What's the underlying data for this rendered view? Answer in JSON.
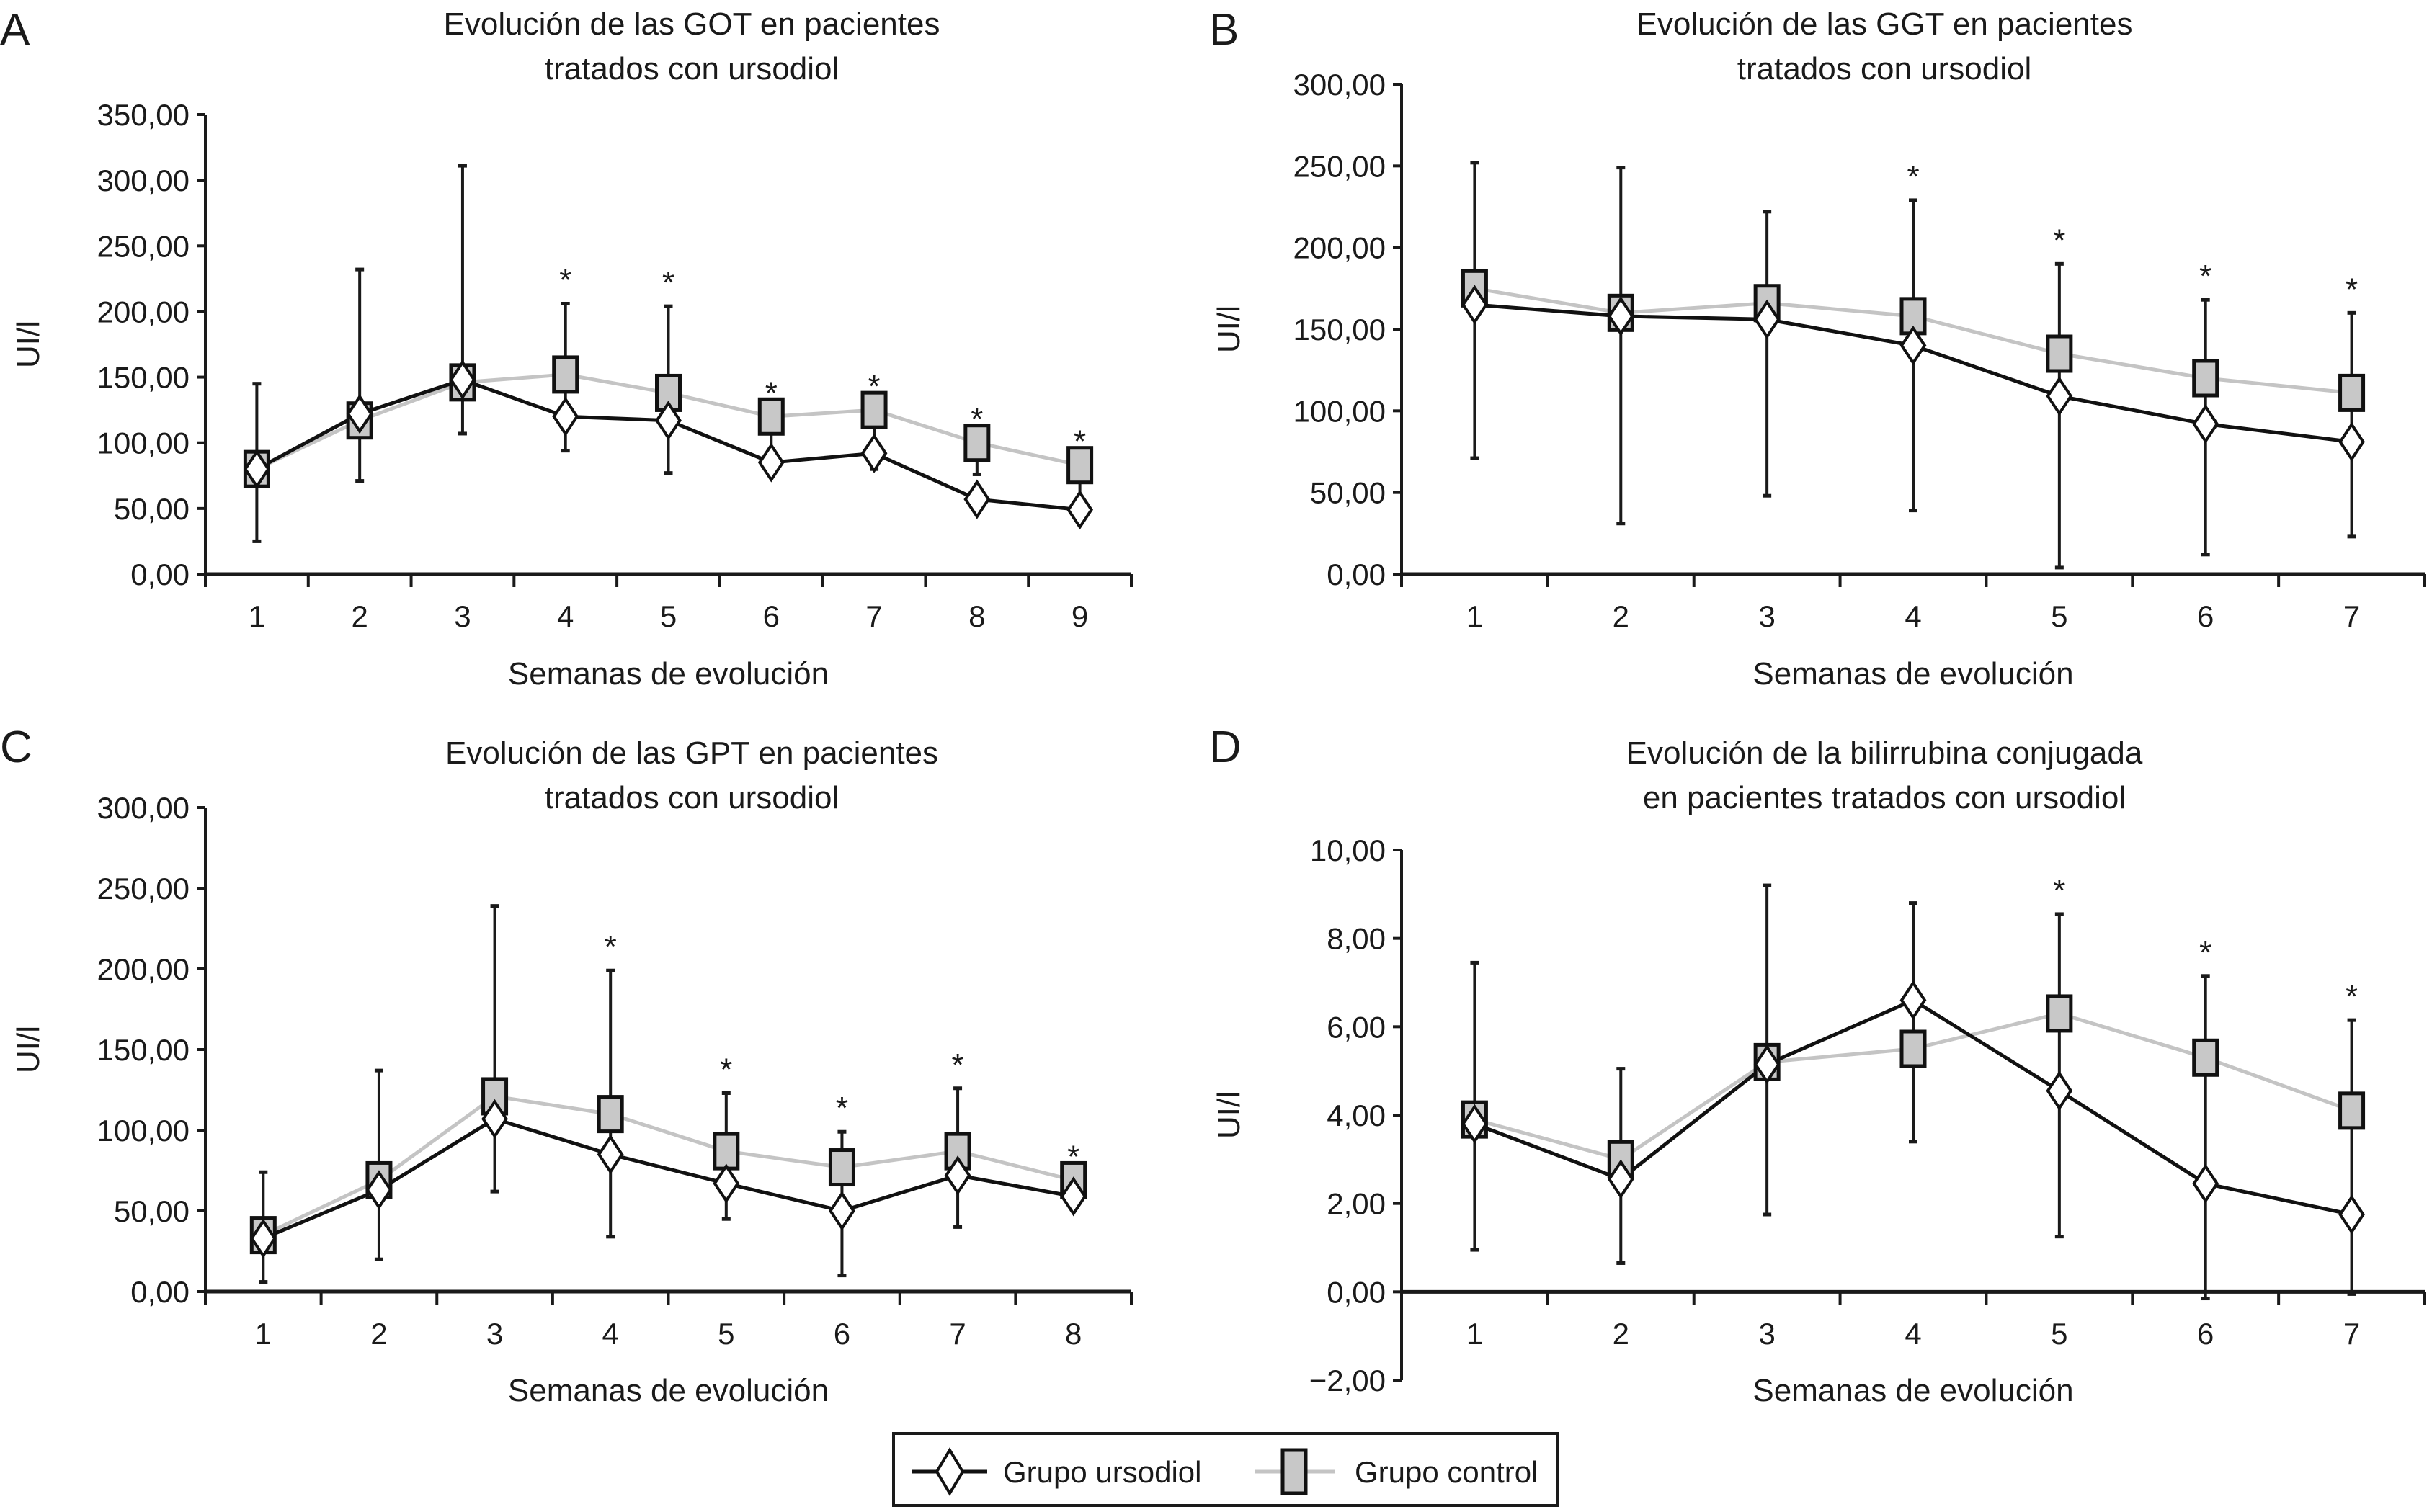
{
  "legend": {
    "items": [
      {
        "label": "Grupo ursodiol",
        "marker": "diamond-open",
        "line_color": "#111111"
      },
      {
        "label": "Grupo control",
        "marker": "square-gray",
        "line_color": "#c0c0c0",
        "fill": "#c8c8c8"
      }
    ]
  },
  "colors": {
    "ursodiol_line": "#111111",
    "control_line": "#c4c4c4",
    "control_fill": "#c8c8c8",
    "axis": "#1a1a1a"
  },
  "chart_data": [
    {
      "panel": "A",
      "type": "line",
      "title": [
        "Evolución de las GOT en pacientes",
        "tratados con ursodiol"
      ],
      "xlabel": "Semanas de evolución",
      "ylabel": "UI/l",
      "ylim": [
        0,
        350
      ],
      "ytick_step": 50,
      "yticks": [
        "0,00",
        "50,00",
        "100,00",
        "150,00",
        "200,00",
        "250,00",
        "300,00",
        "350,00"
      ],
      "categories": [
        "1",
        "2",
        "3",
        "4",
        "5",
        "6",
        "7",
        "8",
        "9"
      ],
      "series": [
        {
          "name": "Grupo ursodiol",
          "values": [
            80,
            122,
            148,
            120,
            117,
            85,
            92,
            57,
            49
          ]
        },
        {
          "name": "Grupo control",
          "values": [
            80,
            117,
            146,
            152,
            138,
            120,
            125,
            100,
            83
          ]
        }
      ],
      "error_upper": [
        145,
        232,
        311,
        206,
        204,
        null,
        null,
        null,
        null
      ],
      "error_lower": [
        25,
        71,
        107,
        94,
        77,
        null,
        80,
        76,
        null
      ],
      "significant": [
        false,
        false,
        false,
        true,
        true,
        true,
        true,
        true,
        true
      ]
    },
    {
      "panel": "B",
      "type": "line",
      "title": [
        "Evolución de las GGT en pacientes",
        "tratados con ursodiol"
      ],
      "xlabel": "Semanas de evolución",
      "ylabel": "UI/l",
      "ylim": [
        0,
        300
      ],
      "ytick_step": 50,
      "yticks": [
        "0,00",
        "50,00",
        "100,00",
        "150,00",
        "200,00",
        "250,00",
        "300,00"
      ],
      "categories": [
        "1",
        "2",
        "3",
        "4",
        "5",
        "6",
        "7"
      ],
      "series": [
        {
          "name": "Grupo ursodiol",
          "values": [
            165,
            158,
            156,
            140,
            109,
            92,
            81
          ]
        },
        {
          "name": "Grupo control",
          "values": [
            175,
            160,
            166,
            158,
            135,
            120,
            111
          ]
        }
      ],
      "error_upper": [
        252,
        249,
        222,
        229,
        190,
        168,
        160
      ],
      "error_lower": [
        71,
        31,
        48,
        39,
        4,
        12,
        23
      ],
      "significant": [
        false,
        false,
        false,
        true,
        true,
        true,
        true
      ]
    },
    {
      "panel": "C",
      "type": "line",
      "title": [
        "Evolución de las GPT en pacientes",
        "tratados con ursodiol"
      ],
      "xlabel": "Semanas de evolución",
      "ylabel": "UI/l",
      "ylim": [
        0,
        300
      ],
      "ytick_step": 50,
      "yticks": [
        "0,00",
        "50,00",
        "100,00",
        "150,00",
        "200,00",
        "250,00",
        "300,00"
      ],
      "categories": [
        "1",
        "2",
        "3",
        "4",
        "5",
        "6",
        "7",
        "8"
      ],
      "series": [
        {
          "name": "Grupo ursodiol",
          "values": [
            33,
            63,
            107,
            85,
            67,
            50,
            72,
            59
          ]
        },
        {
          "name": "Grupo control",
          "values": [
            35,
            69,
            121,
            110,
            87,
            77,
            87,
            69
          ]
        }
      ],
      "error_upper": [
        74,
        137,
        239,
        199,
        123,
        99,
        126,
        null
      ],
      "error_lower": [
        6,
        20,
        62,
        34,
        45,
        10,
        40,
        null
      ],
      "significant": [
        false,
        false,
        false,
        true,
        true,
        true,
        true,
        true
      ]
    },
    {
      "panel": "D",
      "type": "line",
      "title": [
        "Evolución de la bilirrubina conjugada",
        "en pacientes tratados con ursodiol"
      ],
      "xlabel": "Semanas de evolución",
      "ylabel": "UI/l",
      "ylim": [
        -2,
        10
      ],
      "ytick_step": 2,
      "yticks": [
        "−2,00",
        "0,00",
        "2,00",
        "4,00",
        "6,00",
        "8,00",
        "10,00"
      ],
      "categories": [
        "1",
        "2",
        "3",
        "4",
        "5",
        "6",
        "7"
      ],
      "series": [
        {
          "name": "Grupo ursodiol",
          "values": [
            3.8,
            2.55,
            5.15,
            6.6,
            4.55,
            2.45,
            1.75
          ]
        },
        {
          "name": "Grupo control",
          "values": [
            3.9,
            3.0,
            5.2,
            5.5,
            6.3,
            5.3,
            4.1
          ]
        }
      ],
      "error_upper": [
        7.45,
        5.05,
        9.2,
        8.8,
        8.55,
        7.15,
        6.15
      ],
      "error_lower": [
        0.95,
        0.65,
        1.75,
        3.4,
        1.25,
        -0.15,
        -0.05
      ],
      "significant": [
        false,
        false,
        false,
        false,
        true,
        true,
        true
      ]
    }
  ],
  "significance_marker": "*"
}
